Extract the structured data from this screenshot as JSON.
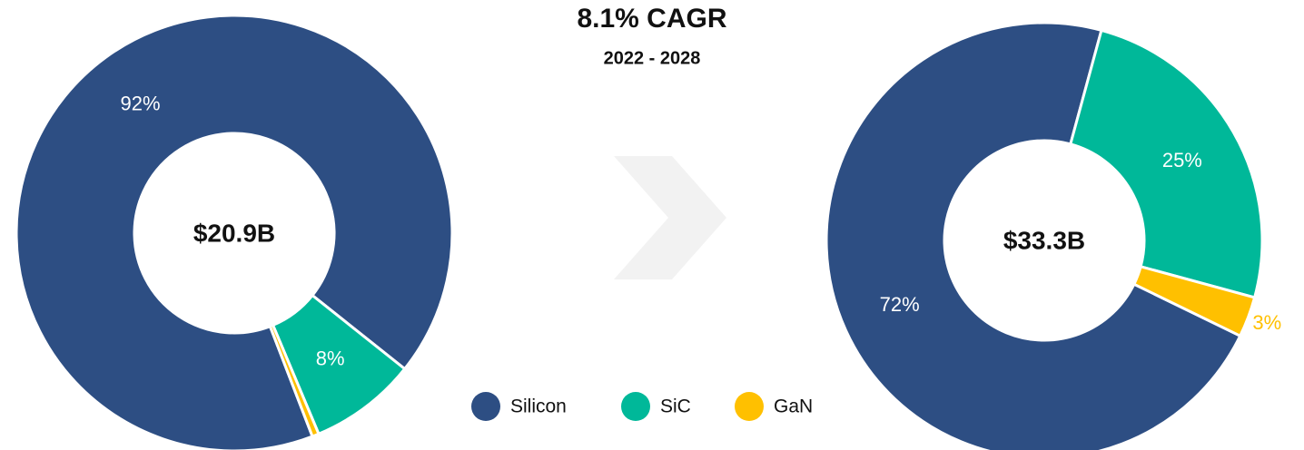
{
  "title": "8.1% CAGR",
  "subtitle": "2022 - 2028",
  "chart_data": [
    {
      "type": "donut",
      "center_label": "$20.9B",
      "categories": [
        "Silicon",
        "SiC",
        "GaN"
      ],
      "values": [
        92,
        8,
        0.5
      ],
      "value_labels": [
        "92%",
        "8%",
        null
      ],
      "colors": [
        "#2d4e83",
        "#00b899",
        "#ffc000"
      ]
    },
    {
      "type": "donut",
      "center_label": "$33.3B",
      "categories": [
        "Silicon",
        "SiC",
        "GaN"
      ],
      "values": [
        72,
        25,
        3
      ],
      "value_labels": [
        "72%",
        "25%",
        "3%"
      ],
      "colors": [
        "#2d4e83",
        "#00b899",
        "#ffc000"
      ]
    }
  ]
}
